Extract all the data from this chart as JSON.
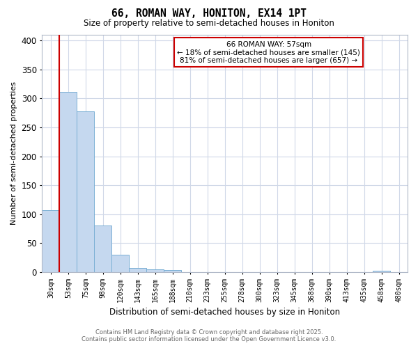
{
  "title": "66, ROMAN WAY, HONITON, EX14 1PT",
  "subtitle": "Size of property relative to semi-detached houses in Honiton",
  "xlabel": "Distribution of semi-detached houses by size in Honiton",
  "ylabel": "Number of semi-detached properties",
  "categories": [
    "30sqm",
    "53sqm",
    "75sqm",
    "98sqm",
    "120sqm",
    "143sqm",
    "165sqm",
    "188sqm",
    "210sqm",
    "233sqm",
    "255sqm",
    "278sqm",
    "300sqm",
    "323sqm",
    "345sqm",
    "368sqm",
    "390sqm",
    "413sqm",
    "435sqm",
    "458sqm",
    "480sqm"
  ],
  "values": [
    107,
    311,
    278,
    80,
    30,
    7,
    4,
    3,
    0,
    0,
    0,
    0,
    0,
    0,
    0,
    0,
    0,
    0,
    0,
    2,
    0
  ],
  "bar_color": "#c5d8ef",
  "bar_edge_color": "#7aafd4",
  "annotation_line_label": "66 ROMAN WAY: 57sqm",
  "annotation_smaller": "← 18% of semi-detached houses are smaller (145)",
  "annotation_larger": "81% of semi-detached houses are larger (657) →",
  "annotation_box_color": "#ffffff",
  "annotation_box_edge_color": "#cc0000",
  "red_line_color": "#cc0000",
  "footer_line1": "Contains HM Land Registry data © Crown copyright and database right 2025.",
  "footer_line2": "Contains public sector information licensed under the Open Government Licence v3.0.",
  "ylim": [
    0,
    410
  ],
  "yticks": [
    0,
    50,
    100,
    150,
    200,
    250,
    300,
    350,
    400
  ],
  "background_color": "#ffffff",
  "grid_color": "#d0d8e8"
}
